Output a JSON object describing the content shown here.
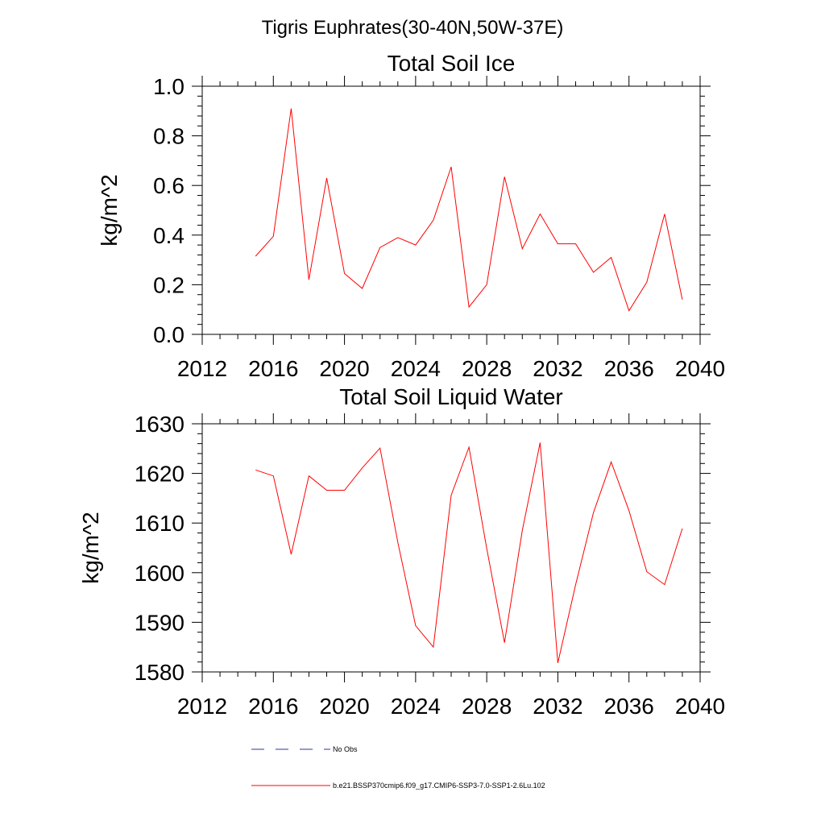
{
  "figure": {
    "title": "Tigris Euphrates(30-40N,50W-37E)"
  },
  "chart_data": [
    {
      "type": "line",
      "title": "Total Soil Ice",
      "xlabel": "",
      "ylabel": "kg/m^2",
      "xlim": [
        2012,
        2040
      ],
      "ylim": [
        0,
        1
      ],
      "xticks": [
        2012,
        2016,
        2020,
        2024,
        2028,
        2032,
        2036,
        2040
      ],
      "yticks": [
        0.0,
        0.2,
        0.4,
        0.6,
        0.8,
        1.0
      ],
      "ytick_labels": [
        "0.0",
        "0.2",
        "0.4",
        "0.6",
        "0.8",
        "1.0"
      ],
      "series": [
        {
          "color": "#ff0000",
          "x": [
            2015,
            2016,
            2017,
            2018,
            2019,
            2020,
            2021,
            2022,
            2023,
            2024,
            2025,
            2026,
            2027,
            2028,
            2029,
            2030,
            2031,
            2032,
            2033,
            2034,
            2035,
            2036,
            2037,
            2038,
            2039
          ],
          "values": [
            0.315,
            0.395,
            0.91,
            0.22,
            0.63,
            0.245,
            0.185,
            0.35,
            0.39,
            0.36,
            0.46,
            0.675,
            0.11,
            0.2,
            0.635,
            0.345,
            0.485,
            0.365,
            0.365,
            0.25,
            0.31,
            0.095,
            0.21,
            0.485,
            0.14
          ]
        }
      ]
    },
    {
      "type": "line",
      "title": "Total Soil Liquid Water",
      "xlabel": "",
      "ylabel": "kg/m^2",
      "xlim": [
        2012,
        2040
      ],
      "ylim": [
        1580,
        1630
      ],
      "xticks": [
        2012,
        2016,
        2020,
        2024,
        2028,
        2032,
        2036,
        2040
      ],
      "yticks": [
        1580,
        1590,
        1600,
        1610,
        1620,
        1630
      ],
      "ytick_labels": [
        "1580",
        "1590",
        "1600",
        "1610",
        "1620",
        "1630"
      ],
      "series": [
        {
          "color": "#ff0000",
          "x": [
            2015,
            2016,
            2017,
            2018,
            2019,
            2020,
            2021,
            2022,
            2023,
            2024,
            2025,
            2026,
            2027,
            2028,
            2029,
            2030,
            2031,
            2032,
            2033,
            2034,
            2035,
            2036,
            2037,
            2038,
            2039
          ],
          "values": [
            1620.7,
            1619.5,
            1603.7,
            1619.5,
            1616.6,
            1616.6,
            1621.1,
            1625.1,
            1606.1,
            1589.3,
            1585.0,
            1615.6,
            1625.3,
            1604.9,
            1585.9,
            1608.5,
            1626.2,
            1581.8,
            1597.6,
            1612.1,
            1622.3,
            1612.5,
            1600.2,
            1597.6,
            1608.9
          ]
        }
      ]
    }
  ],
  "legend": {
    "entries": [
      {
        "label": "No Obs",
        "color": "#2a3a9a",
        "style": "dashed"
      },
      {
        "label": "b.e21.BSSP370cmip6.f09_g17.CMIP6-SSP3-7.0-SSP1-2.6Lu.102",
        "color": "#ff0000",
        "style": "solid"
      }
    ]
  }
}
